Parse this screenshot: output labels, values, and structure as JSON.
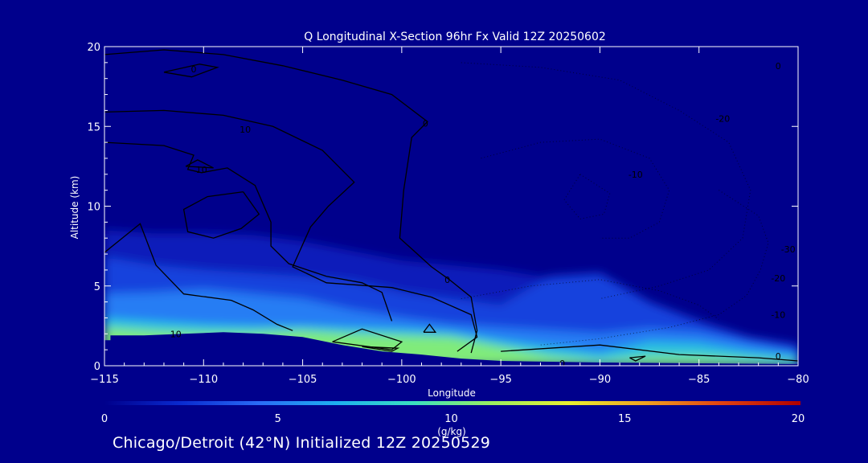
{
  "chart_data": {
    "type": "heatmap",
    "title": "Q Longitudinal X-Section 96hr  Fx Valid 12Z 20250602",
    "xlabel": "Longitude",
    "ylabel": "Altitude (km)",
    "xlim": [
      -115,
      -80
    ],
    "ylim": [
      0,
      20
    ],
    "x_ticks": [
      -115,
      -110,
      -105,
      -100,
      -95,
      -90,
      -85,
      -80
    ],
    "y_ticks": [
      0,
      5,
      10,
      15,
      20
    ],
    "colorbar": {
      "label": "(g/kg)",
      "range": [
        0,
        20
      ],
      "ticks": [
        0,
        5,
        10,
        15,
        20
      ],
      "colors": [
        "#00008c",
        "#0a2bd0",
        "#2a6cf5",
        "#1eb0f0",
        "#3ae0c0",
        "#9aef60",
        "#e8f030",
        "#f0a020",
        "#e04010",
        "#b00000"
      ]
    },
    "terrain_height_km": [
      {
        "lon": -115,
        "alt": 1.6
      },
      {
        "lon": -114.7,
        "alt": 1.6
      },
      {
        "lon": -114.7,
        "alt": 1.9
      },
      {
        "lon": -113,
        "alt": 1.9
      },
      {
        "lon": -111,
        "alt": 2.0
      },
      {
        "lon": -109,
        "alt": 2.1
      },
      {
        "lon": -107,
        "alt": 2.0
      },
      {
        "lon": -105,
        "alt": 1.8
      },
      {
        "lon": -103,
        "alt": 1.3
      },
      {
        "lon": -101,
        "alt": 0.9
      },
      {
        "lon": -99,
        "alt": 0.7
      },
      {
        "lon": -97,
        "alt": 0.45
      },
      {
        "lon": -95,
        "alt": 0.3
      },
      {
        "lon": -90,
        "alt": 0.2
      },
      {
        "lon": -85,
        "alt": 0.15
      },
      {
        "lon": -80,
        "alt": 0.1
      }
    ],
    "moisture_bands": [
      {
        "q": 1.5,
        "top_km": [
          8.5,
          8.3,
          8.3,
          8.2,
          7.8,
          7.2,
          6.6,
          6.3,
          6.0,
          5.5,
          4.8,
          3.8,
          2.5,
          1.6,
          1.2
        ]
      },
      {
        "q": 3.0,
        "top_km": [
          6.8,
          6.3,
          6.0,
          5.8,
          5.6,
          5.3,
          4.6,
          4.2,
          3.8,
          5.6,
          5.8,
          4.0,
          2.8,
          1.8,
          1.3
        ]
      },
      {
        "q": 5.0,
        "top_km": [
          4.5,
          4.6,
          4.8,
          4.5,
          4.2,
          3.5,
          3.0,
          2.6,
          2.4,
          2.2,
          2.0,
          2.3,
          2.1,
          1.5,
          0.9
        ]
      },
      {
        "q": 7.5,
        "top_km": [
          3.0,
          2.8,
          2.6,
          2.5,
          2.5,
          2.4,
          2.3,
          2.1,
          1.6,
          1.2,
          0.8,
          1.5,
          1.4,
          0.9,
          0.6
        ]
      },
      {
        "q": 10.5,
        "top_km": [
          2.4,
          2.2,
          2.1,
          2.1,
          2.2,
          2.0,
          1.9,
          1.8,
          1.2,
          0.6,
          0.3,
          0.6,
          0.6,
          0.4,
          0.2
        ]
      }
    ],
    "band_lons": [
      -115,
      -112.5,
      -110,
      -107.5,
      -105,
      -102.5,
      -100,
      -97.5,
      -95,
      -92.5,
      -90,
      -87.5,
      -85,
      -82.5,
      -80
    ],
    "contour_labels": [
      {
        "text": "0",
        "lon": -110.5,
        "alt": 18.6
      },
      {
        "text": "10",
        "lon": -107.9,
        "alt": 14.8
      },
      {
        "text": "0",
        "lon": -98.8,
        "alt": 15.2
      },
      {
        "text": "10",
        "lon": -110.1,
        "alt": 12.3
      },
      {
        "text": "0",
        "lon": -97.7,
        "alt": 5.4
      },
      {
        "text": "10",
        "lon": -111.4,
        "alt": 2.0
      },
      {
        "text": "0",
        "lon": -91.9,
        "alt": 0.15
      },
      {
        "text": "-20",
        "lon": -83.8,
        "alt": 15.5
      },
      {
        "text": "-10",
        "lon": -88.2,
        "alt": 12.0
      },
      {
        "text": "-30",
        "lon": -80.5,
        "alt": 7.3
      },
      {
        "text": "-20",
        "lon": -81.0,
        "alt": 5.5
      },
      {
        "text": "-10",
        "lon": -81.0,
        "alt": 3.2
      },
      {
        "text": "0",
        "lon": -81.0,
        "alt": 0.6
      },
      {
        "text": "0",
        "lon": -81.0,
        "alt": 18.8
      }
    ]
  },
  "footer": {
    "location": "Chicago/Detroit (42°N) Initialized 12Z 20250529"
  }
}
